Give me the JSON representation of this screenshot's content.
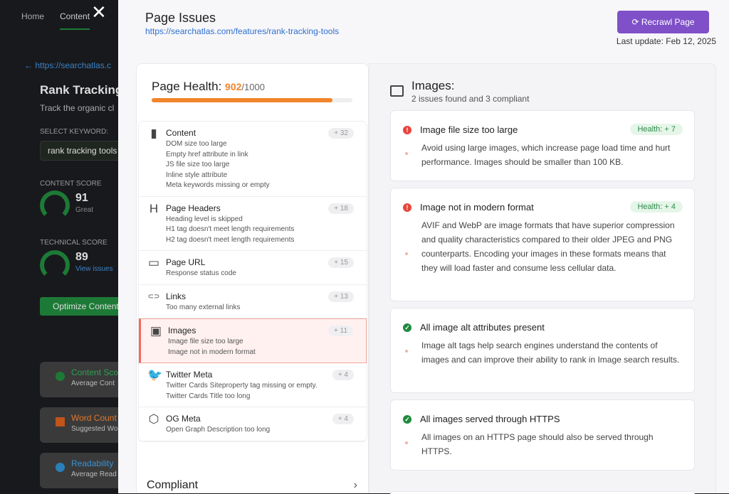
{
  "background": {
    "nav": [
      "Home",
      "Content"
    ],
    "url": "https://searchatlas.c",
    "title": "Rank Tracking",
    "subtitle": "Track the organic cl",
    "select_keyword_label": "SELECT KEYWORD:",
    "keyword": "rank tracking tools",
    "content_score_label": "CONTENT SCORE",
    "content_score": "91",
    "content_score_rating": "Great",
    "technical_score_label": "TECHNICAL SCORE",
    "technical_score": "89",
    "view_issues": "View issues",
    "optimize_button": "Optimize Content",
    "cards": [
      {
        "title": "Content Sco",
        "desc": "Average Cont",
        "color": "#1d7a36"
      },
      {
        "title": "Word Count",
        "desc": "Suggested Wo",
        "color": "#c0541b"
      },
      {
        "title": "Readability",
        "desc": "Average Read",
        "color": "#2a7fb8"
      }
    ]
  },
  "header": {
    "title": "Page Issues",
    "url": "https://searchatlas.com/features/rank-tracking-tools",
    "recrawl_label": "Recrawl Page",
    "last_update": "Last update: Feb 12, 2025"
  },
  "health": {
    "label": "Page Health:",
    "value": "902",
    "max": "/1000",
    "fraction": 0.902,
    "color": "#f0852b"
  },
  "categories": [
    {
      "name": "Content",
      "icon": "document-icon",
      "count": "+ 32",
      "issues": [
        "DOM size too large",
        "Empty href attribute in link",
        "JS file size too large",
        "Inline style attribute",
        "Meta keywords missing or empty"
      ]
    },
    {
      "name": "Page Headers",
      "icon": "heading-icon",
      "count": "+ 18",
      "issues": [
        "Heading level is skipped",
        "H1 tag doesn't meet length requirements",
        "H2 tag doesn't meet length requirements"
      ]
    },
    {
      "name": "Page URL",
      "icon": "browser-icon",
      "count": "+ 15",
      "issues": [
        "Response status code"
      ]
    },
    {
      "name": "Links",
      "icon": "link-icon",
      "count": "+ 13",
      "issues": [
        "Too many external links"
      ]
    },
    {
      "name": "Images",
      "icon": "image-icon",
      "count": "+ 11",
      "issues": [
        "Image file size too large",
        "Image not in modern format"
      ],
      "selected": true
    },
    {
      "name": "Twitter Meta",
      "icon": "twitter-icon",
      "count": "+ 4",
      "issues": [
        "Twitter Cards Siteproperty tag missing or empty.",
        "Twitter Cards Title too long"
      ]
    },
    {
      "name": "OG Meta",
      "icon": "og-icon",
      "count": "+ 4",
      "issues": [
        "Open Graph Description too long"
      ]
    }
  ],
  "compliant_label": "Compliant",
  "detail": {
    "title": "Images:",
    "summary": "2 issues found and 3 compliant",
    "items": [
      {
        "status": "error",
        "title": "Image file size too large",
        "health": "Health: + 7",
        "desc": "Avoid using large images, which increase page load time and hurt performance. Images should be smaller than 100 KB."
      },
      {
        "status": "error",
        "title": "Image not in modern format",
        "health": "Health: + 4",
        "desc": "AVIF and WebP are image formats that have superior compression and quality characteristics compared to their older JPEG and PNG counterparts. Encoding your images in these formats means that they will load faster and consume less cellular data."
      },
      {
        "status": "ok",
        "title": "All image alt attributes present",
        "desc": "Image alt tags help search engines understand the contents of images and can improve their ability to rank in Image search results."
      },
      {
        "status": "ok",
        "title": "All images served through HTTPS",
        "desc": "All images on an HTTPS page should also be served through HTTPS."
      }
    ]
  },
  "colors": {
    "error": "#e8453c",
    "ok": "#1e8a3e",
    "accent": "#7f50c8"
  }
}
